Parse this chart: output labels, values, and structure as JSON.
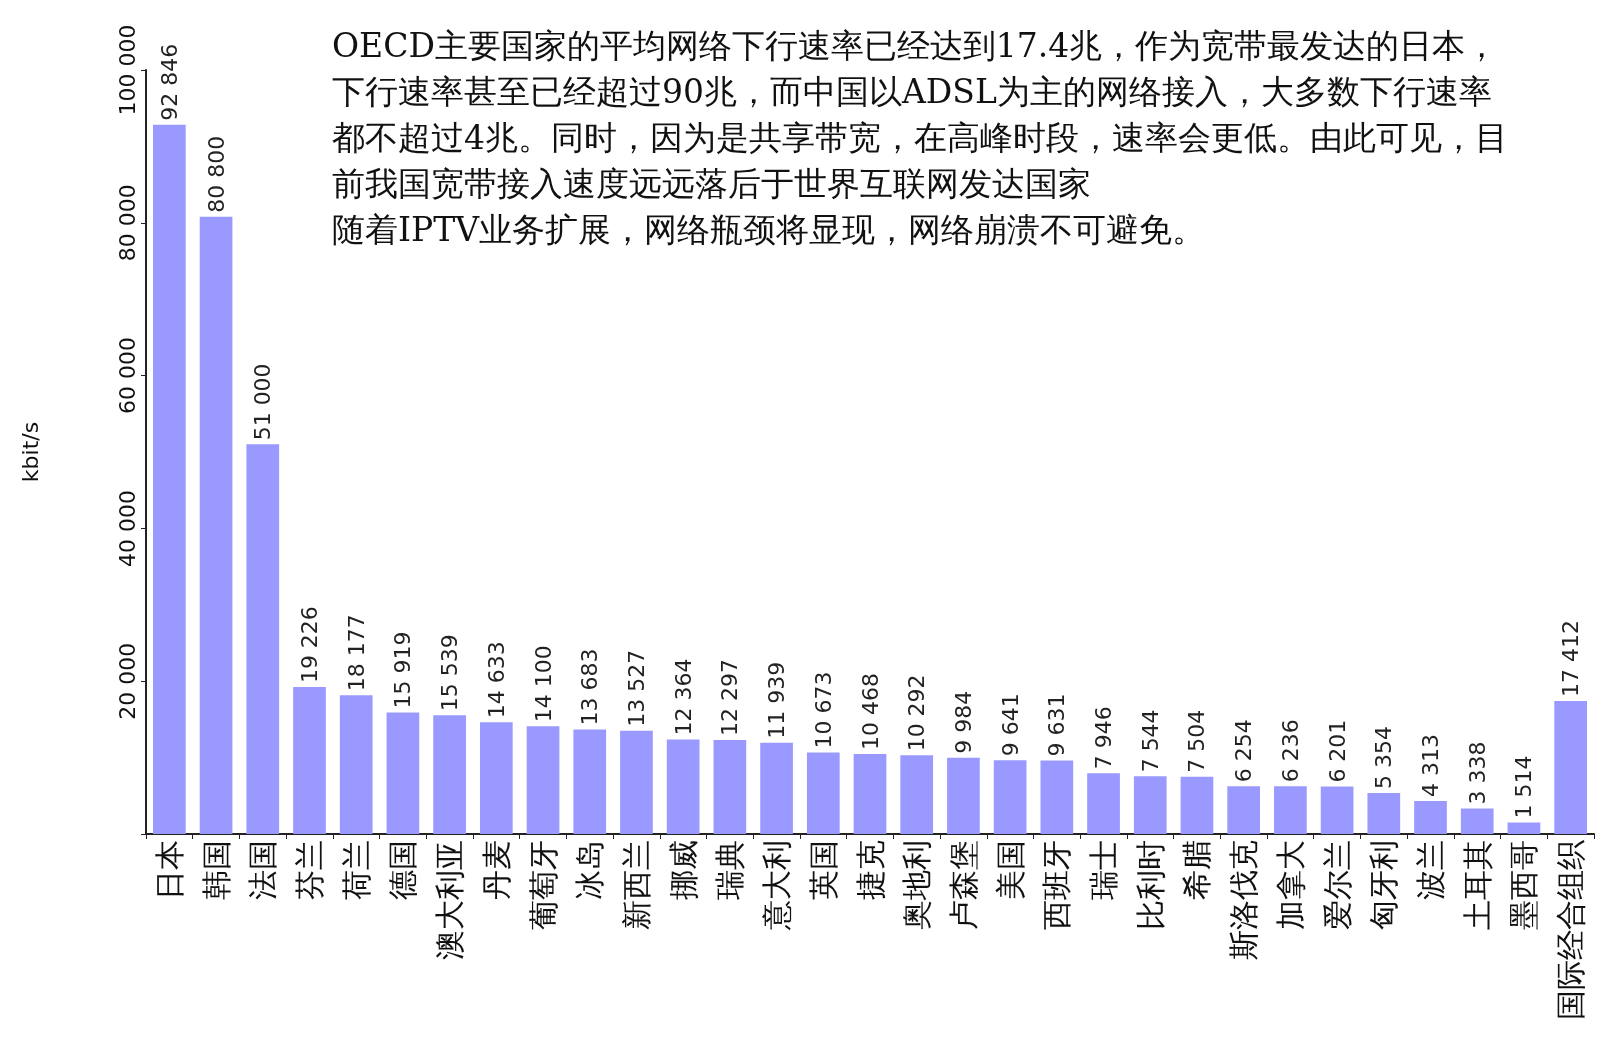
{
  "chart_data": {
    "type": "bar",
    "ylabel": "kbit/s",
    "categories": [
      "日本",
      "韩国",
      "法国",
      "芬兰",
      "荷兰",
      "德国",
      "澳大利亚",
      "丹麦",
      "葡萄牙",
      "冰岛",
      "新西兰",
      "挪威",
      "瑞典",
      "意大利",
      "英国",
      "捷克",
      "奥地利",
      "卢森堡",
      "美国",
      "西班牙",
      "瑞士",
      "比利时",
      "希腊",
      "斯洛伐克",
      "加拿大",
      "爱尔兰",
      "匈牙利",
      "波兰",
      "土耳其",
      "墨西哥",
      "国际经合组织"
    ],
    "values": [
      92846,
      80800,
      51000,
      19226,
      18177,
      15919,
      15539,
      14633,
      14100,
      13683,
      13527,
      12364,
      12297,
      11939,
      10673,
      10468,
      10292,
      9984,
      9641,
      9631,
      7946,
      7544,
      7504,
      6254,
      6236,
      6201,
      5354,
      4313,
      3338,
      1514,
      17412
    ],
    "value_labels": [
      "92 846",
      "80 800",
      "51 000",
      "19 226",
      "18 177",
      "15 919",
      "15 539",
      "14 633",
      "14 100",
      "13 683",
      "13 527",
      "12 364",
      "12 297",
      "11 939",
      "10 673",
      "10 468",
      "10 292",
      "9 984",
      "9 641",
      "9 631",
      "7 946",
      "7 544",
      "7 504",
      "6 254",
      "6 236",
      "6 201",
      "5 354",
      "4 313",
      "3 338",
      "1 514",
      "17 412"
    ],
    "color": "#9999ff",
    "ylim": [
      0,
      100000
    ],
    "yticks": [
      {
        "value": 0,
        "label": null
      },
      {
        "value": 20000,
        "label": "20 000"
      },
      {
        "value": 40000,
        "label": "40 000"
      },
      {
        "value": 60000,
        "label": "60 000"
      },
      {
        "value": 80000,
        "label": "80 000"
      },
      {
        "value": 100000,
        "label": "100 000"
      }
    ],
    "grid": false,
    "annotations": [
      "OECD主要国家的平均网络下行速率已经达到17.4兆，作为宽带最发达的日本，下行速率甚至已经超过90兆，而中国以ADSL为主的网络接入，大多数下行速率都不超过4兆。同时，因为是共享带宽，在高峰时段，速率会更低。由此可见，目前我国宽带接入速度远远落后于世界互联网发达国家",
      "随着IPTV业务扩展，网络瓶颈将显现，网络崩溃不可避免。"
    ]
  }
}
